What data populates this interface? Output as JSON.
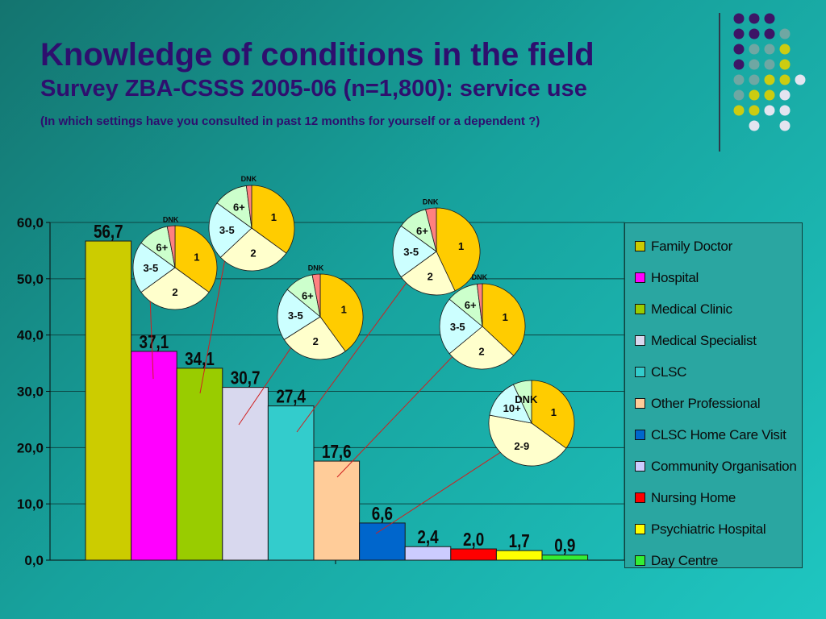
{
  "header": {
    "title": "Knowledge of conditions in the field",
    "subtitle": "Survey ZBA-CSSS 2005-06 (n=1,800): service use",
    "question": "(In which settings have you consulted in past 12 months for yourself or a dependent ?)"
  },
  "chart_data": {
    "type": "bar",
    "categories": [
      "Family Doctor",
      "Hospital",
      "Medical Clinic",
      "Medical Specialist",
      "CLSC",
      "Other Professional",
      "CLSC Home Care Visit",
      "Community Organisation",
      "Nursing Home",
      "Psychiatric Hospital",
      "Day Centre"
    ],
    "values": [
      56.7,
      37.1,
      34.1,
      30.7,
      27.4,
      17.6,
      6.6,
      2.4,
      2.0,
      1.7,
      0.9
    ],
    "value_labels": [
      "56,7",
      "37,1",
      "34,1",
      "30,7",
      "27,4",
      "17,6",
      "6,6",
      "2,4",
      "2,0",
      "1,7",
      "0,9"
    ],
    "colors": [
      "#cccc00",
      "#ff00ff",
      "#99cc00",
      "#d8d8ee",
      "#33cccc",
      "#ffcc99",
      "#0066cc",
      "#ccccff",
      "#ff0000",
      "#ffff00",
      "#33ee33"
    ],
    "ylim": [
      0,
      60
    ],
    "yticks": [
      0,
      10,
      20,
      30,
      40,
      50,
      60
    ],
    "ytick_labels": [
      "0,0",
      "10,0",
      "20,0",
      "30,0",
      "40,0",
      "50,0",
      "60,0"
    ],
    "grid": true,
    "legend_position": "right",
    "legend_entries": [
      "Family Doctor",
      "Hospital",
      "Medical Clinic",
      "Medical Specialist",
      "CLSC",
      "Other Professional",
      "CLSC Home Care Visit",
      "Community Organisation",
      "Nursing Home",
      "Psychiatric Hospital",
      "Day Centre"
    ],
    "inset_pies": [
      {
        "category": "Family Doctor",
        "slices": [
          {
            "label": "1",
            "value": 35,
            "color": "#ffcc00"
          },
          {
            "label": "2",
            "value": 30,
            "color": "#ffffcc"
          },
          {
            "label": "3-5",
            "value": 20,
            "color": "#ccffff"
          },
          {
            "label": "6+",
            "value": 12,
            "color": "#ccffcc"
          },
          {
            "label": "DNK",
            "value": 3,
            "color": "#ff8080"
          }
        ]
      },
      {
        "category": "Hospital",
        "slices": [
          {
            "label": "1",
            "value": 35,
            "color": "#ffcc00"
          },
          {
            "label": "2",
            "value": 28,
            "color": "#ffffcc"
          },
          {
            "label": "3-5",
            "value": 22,
            "color": "#ccffff"
          },
          {
            "label": "6+",
            "value": 13,
            "color": "#ccffcc"
          },
          {
            "label": "DNK",
            "value": 2,
            "color": "#ff8080"
          }
        ]
      },
      {
        "category": "Medical Clinic",
        "slices": [
          {
            "label": "1",
            "value": 40,
            "color": "#ffcc00"
          },
          {
            "label": "2",
            "value": 26,
            "color": "#ffffcc"
          },
          {
            "label": "3-5",
            "value": 20,
            "color": "#ccffff"
          },
          {
            "label": "6+",
            "value": 11,
            "color": "#ccffcc"
          },
          {
            "label": "DNK",
            "value": 3,
            "color": "#ff8080"
          }
        ]
      },
      {
        "category": "Medical Specialist",
        "slices": [
          {
            "label": "1",
            "value": 43,
            "color": "#ffcc00"
          },
          {
            "label": "2",
            "value": 22,
            "color": "#ffffcc"
          },
          {
            "label": "3-5",
            "value": 20,
            "color": "#ccffff"
          },
          {
            "label": "6+",
            "value": 11,
            "color": "#ccffcc"
          },
          {
            "label": "DNK",
            "value": 4,
            "color": "#ff8080"
          }
        ]
      },
      {
        "category": "CLSC",
        "slices": [
          {
            "label": "1",
            "value": 37,
            "color": "#ffcc00"
          },
          {
            "label": "2",
            "value": 27,
            "color": "#ffffcc"
          },
          {
            "label": "3-5",
            "value": 22,
            "color": "#ccffff"
          },
          {
            "label": "6+",
            "value": 12,
            "color": "#ccffcc"
          },
          {
            "label": "DNK",
            "value": 2,
            "color": "#ff8080"
          }
        ]
      },
      {
        "category": "Other Professional",
        "slices": [
          {
            "label": "1",
            "value": 35,
            "color": "#ffcc00"
          },
          {
            "label": "2-9",
            "value": 43,
            "color": "#ffffcc"
          },
          {
            "label": "10+",
            "value": 15,
            "color": "#ccffff"
          },
          {
            "label": "DNK",
            "value": 7,
            "color": "#ccffcc"
          }
        ]
      }
    ]
  }
}
